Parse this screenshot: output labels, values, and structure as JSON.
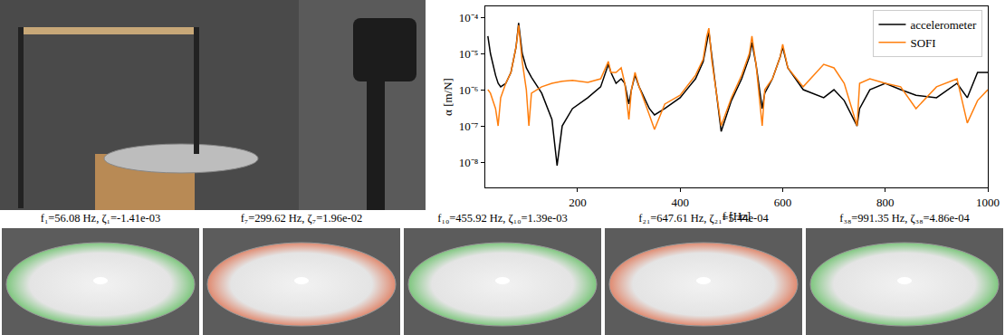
{
  "chart_data": {
    "type": "line",
    "x_label": "f [Hz]",
    "y_label": "α [m/N]",
    "log": "y",
    "grid": false,
    "legend": "upper right",
    "xlim": [
      20,
      1000
    ],
    "xticks": [
      200,
      400,
      600,
      800,
      1000
    ],
    "ylim": [
      2e-09,
      0.0002
    ],
    "yticks": [
      {
        "value": 1e-08,
        "label": "10⁻⁸"
      },
      {
        "value": 1e-07,
        "label": "10⁻⁷"
      },
      {
        "value": 1e-06,
        "label": "10⁻⁶"
      },
      {
        "value": 1e-05,
        "label": "10⁻⁵"
      },
      {
        "value": 0.0001,
        "label": "10⁻⁴"
      }
    ],
    "x": [
      25,
      30,
      40,
      45,
      50,
      60,
      70,
      80,
      85,
      88,
      92,
      100,
      105,
      110,
      130,
      150,
      160,
      170,
      190,
      220,
      245,
      255,
      260,
      265,
      275,
      285,
      292,
      300,
      305,
      312,
      320,
      340,
      350,
      370,
      400,
      430,
      445,
      452,
      456,
      462,
      480,
      500,
      520,
      535,
      540,
      548,
      560,
      565,
      580,
      595,
      600,
      610,
      640,
      680,
      700,
      720,
      745,
      750,
      770,
      800,
      830,
      860,
      900,
      940,
      960,
      980,
      1000
    ],
    "series": [
      {
        "name": "accelerometer",
        "color": "#000000",
        "line_style": "solid",
        "values": [
          3e-05,
          1e-05,
          2.5e-06,
          1.5e-06,
          1.2e-06,
          1.5e-06,
          3e-06,
          1.5e-05,
          7e-05,
          3e-05,
          1e-05,
          4e-06,
          3e-06,
          2.2e-06,
          8e-07,
          1.5e-07,
          8e-09,
          1e-07,
          3e-07,
          6e-07,
          1.2e-06,
          3e-06,
          5e-06,
          3e-06,
          1.5e-06,
          2e-06,
          1.5e-06,
          4e-07,
          1e-06,
          2.5e-06,
          1.2e-06,
          3e-07,
          2e-07,
          3e-07,
          6e-07,
          2e-06,
          6e-06,
          2e-05,
          4e-05,
          8e-06,
          7e-08,
          5e-07,
          2e-06,
          8e-06,
          2e-05,
          5e-06,
          3e-07,
          8e-07,
          2e-06,
          8e-06,
          1.5e-05,
          4e-06,
          1e-06,
          6e-07,
          1e-06,
          5e-07,
          1e-07,
          3e-07,
          1e-06,
          1.5e-06,
          1e-06,
          7e-07,
          6e-07,
          1.5e-06,
          6e-07,
          3e-06,
          3e-06
        ]
      },
      {
        "name": "SOFI",
        "color": "#ff7f0e",
        "line_style": "solid",
        "values": [
          1e-06,
          8e-07,
          3e-07,
          1e-07,
          6e-07,
          1.5e-06,
          3e-06,
          1.5e-05,
          6e-05,
          2.5e-05,
          6e-06,
          1e-06,
          1e-07,
          8e-07,
          1.2e-06,
          1.5e-06,
          1.6e-06,
          1.7e-06,
          1.8e-06,
          1.6e-06,
          2e-06,
          4e-06,
          6e-06,
          3e-06,
          3e-06,
          4e-06,
          1.5e-06,
          1.5e-07,
          1e-06,
          3e-06,
          1.2e-06,
          2e-07,
          8e-08,
          4e-07,
          7e-07,
          2.5e-06,
          7e-06,
          3e-05,
          5e-05,
          6e-06,
          1e-07,
          6e-07,
          2.5e-06,
          1e-05,
          3e-05,
          5e-06,
          1e-07,
          1e-06,
          2e-06,
          8e-06,
          1.8e-05,
          4e-06,
          1.2e-06,
          5e-06,
          4e-06,
          1.5e-06,
          1e-07,
          1.5e-06,
          2e-06,
          1.5e-06,
          1.2e-06,
          3e-07,
          1.2e-06,
          2e-06,
          1.2e-07,
          5e-07,
          1e-06
        ]
      }
    ]
  },
  "mode_panels": [
    {
      "title": "f₁=56.08 Hz, ζ₁=-1.41e-03"
    },
    {
      "title": "f₇=299.62 Hz, ζ₇=1.96e-02"
    },
    {
      "title": "f₁₀=455.92 Hz, ζ₁₀=1.39e-03"
    },
    {
      "title": "f₂₁=647.61 Hz, ζ₂₁=5.44e-04"
    },
    {
      "title": "f₃₈=991.35 Hz, ζ₃₈=4.86e-04"
    }
  ]
}
